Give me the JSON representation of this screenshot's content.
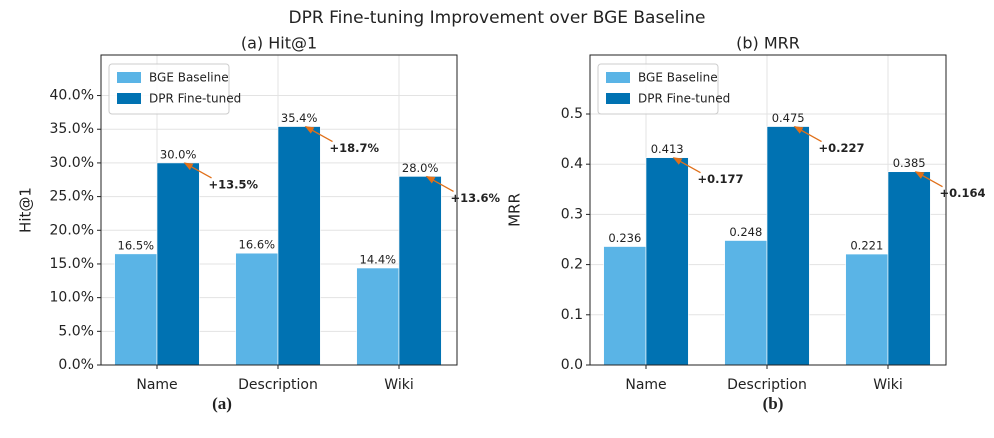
{
  "title": "DPR Fine-tuning Improvement over BGE Baseline",
  "captions": [
    "(a)",
    "(b)"
  ],
  "chart_data": [
    {
      "type": "bar",
      "title": "(a) Hit@1",
      "ylabel": "Hit@1",
      "categories": [
        "Name",
        "Description",
        "Wiki"
      ],
      "series": [
        {
          "name": "BGE Baseline",
          "color": "#5ab4e6",
          "values": [
            16.5,
            16.6,
            14.4
          ],
          "value_labels": [
            "16.5%",
            "16.6%",
            "14.4%"
          ]
        },
        {
          "name": "DPR Fine-tuned",
          "color": "#0072b2",
          "values": [
            30.0,
            35.4,
            28.0
          ],
          "value_labels": [
            "30.0%",
            "35.4%",
            "28.0%"
          ]
        }
      ],
      "annotations": [
        "+13.5%",
        "+18.7%",
        "+13.6%"
      ],
      "annotation_color": "#e0701a",
      "ylim": [
        0,
        46.02
      ],
      "yticks": [
        {
          "value": 0,
          "label": "0.0%"
        },
        {
          "value": 5,
          "label": "5.0%"
        },
        {
          "value": 10,
          "label": "10.0%"
        },
        {
          "value": 15,
          "label": "15.0%"
        },
        {
          "value": 20,
          "label": "20.0%"
        },
        {
          "value": 25,
          "label": "25.0%"
        },
        {
          "value": 30,
          "label": "30.0%"
        },
        {
          "value": 35,
          "label": "35.0%"
        },
        {
          "value": 40,
          "label": "40.0%"
        }
      ],
      "grid": true,
      "legend": "upper left"
    },
    {
      "type": "bar",
      "title": "(b) MRR",
      "ylabel": "MRR",
      "categories": [
        "Name",
        "Description",
        "Wiki"
      ],
      "series": [
        {
          "name": "BGE Baseline",
          "color": "#5ab4e6",
          "values": [
            0.236,
            0.248,
            0.221
          ]
        },
        {
          "name": "DPR Fine-tuned",
          "color": "#0072b2",
          "values": [
            0.413,
            0.475,
            0.385
          ]
        }
      ],
      "annotations": [
        "+0.177",
        "+0.227",
        "+0.164"
      ],
      "annotation_color": "#e0701a",
      "ylim": [
        0,
        0.6175
      ],
      "yticks": [
        {
          "value": 0,
          "label": "0.0"
        },
        0.1,
        0.2,
        0.3,
        0.4,
        0.5
      ],
      "grid": true,
      "legend": "upper left"
    }
  ]
}
